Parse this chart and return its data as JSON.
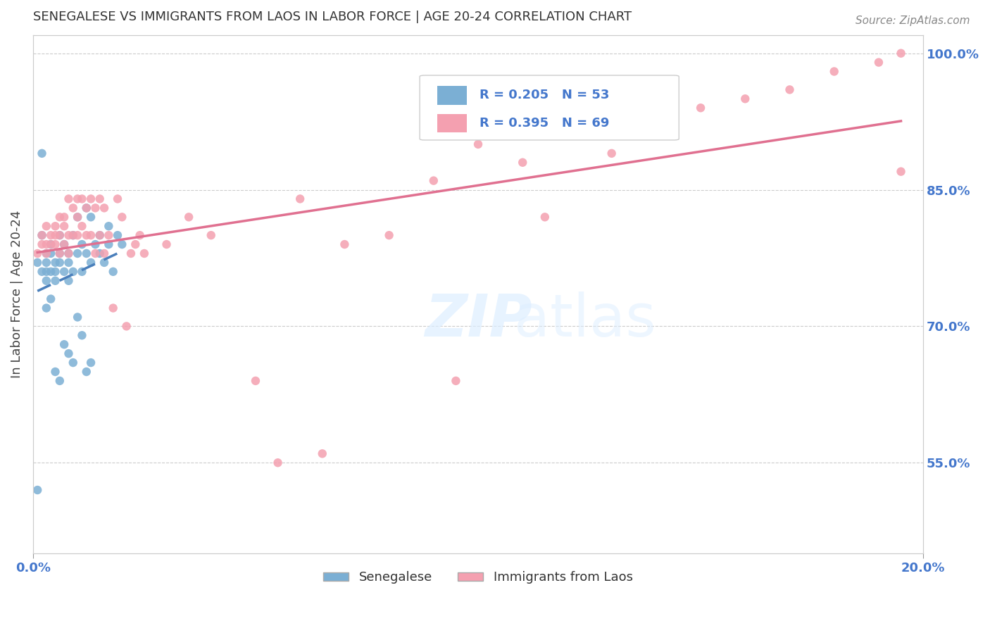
{
  "title": "SENEGALESE VS IMMIGRANTS FROM LAOS IN LABOR FORCE | AGE 20-24 CORRELATION CHART",
  "source_text": "Source: ZipAtlas.com",
  "xlabel": "",
  "ylabel": "In Labor Force | Age 20-24",
  "xlim": [
    0.0,
    0.2
  ],
  "ylim": [
    0.45,
    1.02
  ],
  "ytick_labels": [
    "55.0%",
    "70.0%",
    "85.0%",
    "100.0%"
  ],
  "ytick_values": [
    0.55,
    0.7,
    0.85,
    1.0
  ],
  "xtick_labels": [
    "0.0%",
    "20.0%"
  ],
  "xtick_values": [
    0.0,
    0.2
  ],
  "legend_entries": [
    {
      "label": "R = 0.205   N = 53",
      "color": "#7bafd4"
    },
    {
      "label": "R = 0.395   N = 69",
      "color": "#f4a0b0"
    }
  ],
  "legend_label_1": "Senegalese",
  "legend_label_2": "Immigrants from Laos",
  "R_senegalese": 0.205,
  "N_senegalese": 53,
  "R_laos": 0.395,
  "N_laos": 69,
  "color_senegalese": "#7bafd4",
  "color_laos": "#f4a0b0",
  "color_line_senegalese": "#4a7fbb",
  "color_line_laos": "#e07090",
  "watermark": "ZIPatlas",
  "title_color": "#333333",
  "axis_color": "#4477cc",
  "grid_color": "#cccccc",
  "senegalese_x": [
    0.001,
    0.002,
    0.002,
    0.003,
    0.003,
    0.003,
    0.003,
    0.004,
    0.004,
    0.004,
    0.005,
    0.005,
    0.005,
    0.006,
    0.006,
    0.006,
    0.007,
    0.007,
    0.008,
    0.008,
    0.008,
    0.009,
    0.009,
    0.01,
    0.01,
    0.011,
    0.011,
    0.012,
    0.012,
    0.013,
    0.013,
    0.014,
    0.015,
    0.015,
    0.016,
    0.017,
    0.017,
    0.018,
    0.019,
    0.02,
    0.001,
    0.002,
    0.003,
    0.004,
    0.005,
    0.006,
    0.007,
    0.008,
    0.009,
    0.01,
    0.011,
    0.012,
    0.013
  ],
  "senegalese_y": [
    0.77,
    0.8,
    0.76,
    0.78,
    0.77,
    0.76,
    0.75,
    0.79,
    0.78,
    0.76,
    0.77,
    0.76,
    0.75,
    0.8,
    0.78,
    0.77,
    0.79,
    0.76,
    0.78,
    0.77,
    0.75,
    0.8,
    0.76,
    0.82,
    0.78,
    0.79,
    0.76,
    0.83,
    0.78,
    0.82,
    0.77,
    0.79,
    0.8,
    0.78,
    0.77,
    0.79,
    0.81,
    0.76,
    0.8,
    0.79,
    0.52,
    0.89,
    0.72,
    0.73,
    0.65,
    0.64,
    0.68,
    0.67,
    0.66,
    0.71,
    0.69,
    0.65,
    0.66
  ],
  "laos_x": [
    0.001,
    0.002,
    0.002,
    0.003,
    0.003,
    0.003,
    0.004,
    0.004,
    0.005,
    0.005,
    0.005,
    0.006,
    0.006,
    0.006,
    0.007,
    0.007,
    0.007,
    0.008,
    0.008,
    0.008,
    0.009,
    0.009,
    0.01,
    0.01,
    0.01,
    0.011,
    0.011,
    0.012,
    0.012,
    0.013,
    0.013,
    0.014,
    0.014,
    0.015,
    0.015,
    0.016,
    0.016,
    0.017,
    0.018,
    0.019,
    0.02,
    0.021,
    0.022,
    0.023,
    0.024,
    0.025,
    0.03,
    0.035,
    0.04,
    0.05,
    0.06,
    0.07,
    0.08,
    0.09,
    0.1,
    0.11,
    0.12,
    0.13,
    0.15,
    0.16,
    0.17,
    0.18,
    0.19,
    0.195,
    0.195,
    0.115,
    0.095,
    0.065,
    0.055
  ],
  "laos_y": [
    0.78,
    0.8,
    0.79,
    0.81,
    0.79,
    0.78,
    0.8,
    0.79,
    0.81,
    0.8,
    0.79,
    0.82,
    0.8,
    0.78,
    0.82,
    0.81,
    0.79,
    0.84,
    0.8,
    0.78,
    0.83,
    0.8,
    0.84,
    0.82,
    0.8,
    0.84,
    0.81,
    0.83,
    0.8,
    0.84,
    0.8,
    0.83,
    0.78,
    0.84,
    0.8,
    0.83,
    0.78,
    0.8,
    0.72,
    0.84,
    0.82,
    0.7,
    0.78,
    0.79,
    0.8,
    0.78,
    0.79,
    0.82,
    0.8,
    0.64,
    0.84,
    0.79,
    0.8,
    0.86,
    0.9,
    0.88,
    0.92,
    0.89,
    0.94,
    0.95,
    0.96,
    0.98,
    0.99,
    1.0,
    0.87,
    0.82,
    0.64,
    0.56,
    0.55
  ]
}
